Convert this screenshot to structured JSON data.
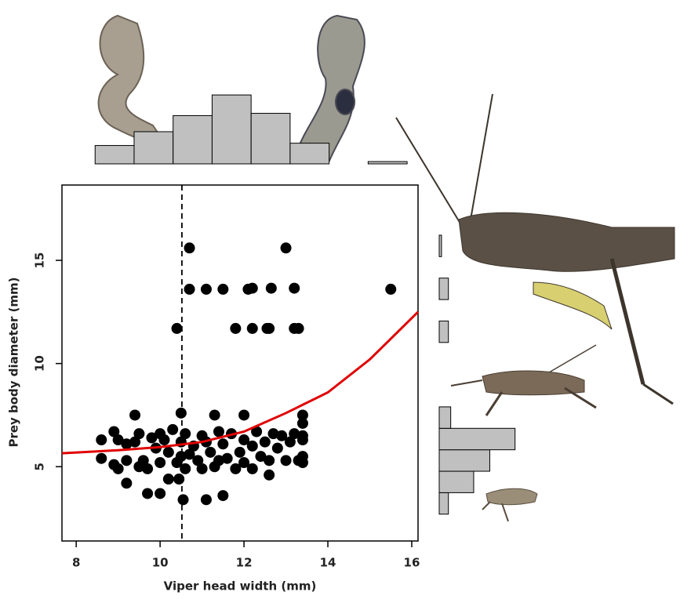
{
  "chart_data": {
    "type": "scatter",
    "xlabel": "Viper head width (mm)",
    "ylabel": "Prey body diameter (mm)",
    "xlim": [
      7.66,
      16.15
    ],
    "ylim": [
      1.4,
      18.65
    ],
    "xticks": [
      8,
      10,
      12,
      14,
      16
    ],
    "yticks": [
      5,
      10,
      15
    ],
    "color": "#000000",
    "x": [
      10.7,
      13.0,
      10.7,
      11.1,
      11.5,
      12.1,
      12.2,
      12.65,
      13.2,
      15.5,
      10.4,
      11.8,
      12.2,
      12.55,
      12.6,
      13.2,
      13.3,
      8.6,
      8.6,
      8.9,
      8.9,
      9.0,
      9.0,
      9.2,
      9.2,
      9.2,
      9.4,
      9.4,
      9.5,
      9.5,
      9.6,
      9.7,
      9.7,
      9.8,
      9.9,
      10.0,
      10.0,
      10.0,
      10.1,
      10.2,
      10.2,
      10.3,
      10.4,
      10.45,
      10.5,
      10.5,
      10.5,
      10.55,
      10.6,
      10.6,
      10.7,
      10.8,
      10.9,
      11.0,
      11.0,
      11.1,
      11.1,
      11.2,
      11.3,
      11.3,
      11.4,
      11.4,
      11.5,
      11.5,
      11.6,
      11.7,
      11.8,
      11.9,
      12.0,
      12.0,
      12.0,
      12.2,
      12.2,
      12.3,
      12.4,
      12.5,
      12.6,
      12.6,
      12.7,
      12.8,
      12.9,
      13.0,
      13.1,
      13.2,
      13.3,
      13.4,
      13.4,
      13.4,
      13.4,
      13.4,
      13.4
    ],
    "y": [
      15.6,
      15.6,
      13.6,
      13.6,
      13.6,
      13.6,
      13.65,
      13.65,
      13.65,
      13.6,
      11.7,
      11.7,
      11.7,
      11.7,
      11.7,
      11.7,
      11.7,
      6.3,
      5.4,
      6.7,
      5.1,
      6.3,
      4.9,
      6.1,
      5.3,
      4.2,
      7.5,
      6.2,
      5.0,
      6.6,
      5.3,
      3.7,
      4.9,
      6.4,
      5.9,
      6.6,
      3.7,
      5.2,
      6.3,
      4.4,
      5.7,
      6.8,
      5.2,
      4.4,
      7.6,
      6.2,
      5.5,
      3.4,
      6.6,
      4.9,
      5.6,
      6.0,
      5.3,
      6.5,
      4.9,
      3.4,
      6.2,
      5.7,
      7.5,
      5.0,
      6.7,
      5.3,
      3.6,
      6.1,
      5.4,
      6.6,
      4.9,
      5.7,
      7.5,
      6.3,
      5.2,
      6.0,
      4.9,
      6.7,
      5.5,
      6.2,
      4.6,
      5.3,
      6.6,
      5.9,
      6.5,
      5.3,
      6.2,
      6.6,
      5.3,
      7.5,
      7.1,
      6.5,
      6.3,
      5.5,
      5.2
    ],
    "vline": {
      "x": 10.52,
      "color": "#000000"
    },
    "fit_curve": {
      "color": "#e00000",
      "x": [
        7.66,
        9,
        10,
        11,
        12,
        13,
        14,
        15,
        16.15
      ],
      "y": [
        5.65,
        5.8,
        5.95,
        6.2,
        6.7,
        7.6,
        8.6,
        10.2,
        12.5
      ]
    },
    "top_histogram": {
      "color": "#c0c0c0",
      "bins": [
        8.45,
        9.38,
        10.31,
        11.24,
        12.17,
        13.1,
        14.03,
        14.96,
        15.89
      ],
      "counts": [
        8,
        14,
        21,
        30,
        22,
        9,
        0,
        1
      ]
    },
    "right_histogram": {
      "color": "#c0c0c0",
      "bins": [
        2.7,
        3.74,
        4.78,
        5.82,
        6.86,
        7.9,
        8.94,
        9.98,
        11.02,
        12.06,
        13.1,
        14.14,
        15.18,
        16.22
      ],
      "counts": [
        4,
        15,
        22,
        33,
        5,
        0,
        0,
        0,
        4,
        0,
        4,
        0,
        1
      ]
    }
  }
}
